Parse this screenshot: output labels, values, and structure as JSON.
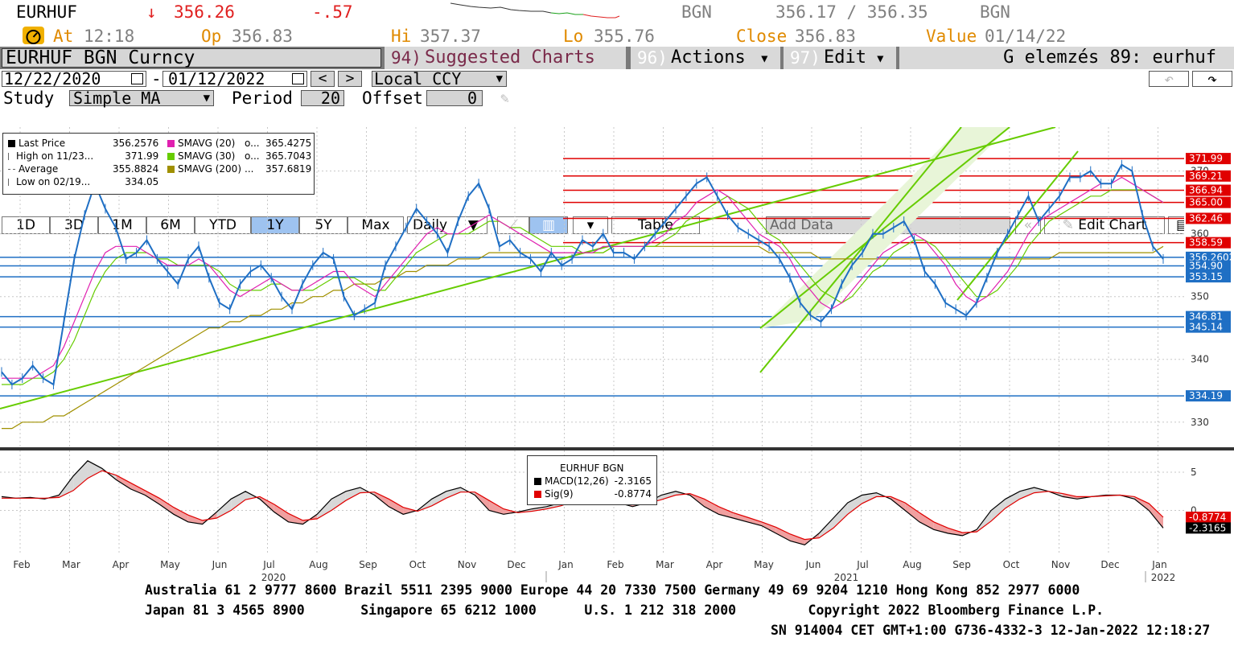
{
  "ticker_row": {
    "ticker": "EURHUF",
    "arrow": "↓",
    "price": "356.26",
    "change": "-.57",
    "source_left": "BGN",
    "bid_ask": "356.17 / 356.35",
    "source_right": "BGN"
  },
  "quote_row": {
    "at_label": "At",
    "at_value": "12:18",
    "op_label": "Op",
    "op_value": "356.83",
    "hi_label": "Hi",
    "hi_value": "357.37",
    "lo_label": "Lo",
    "lo_value": "355.76",
    "close_label": "Close",
    "close_value": "356.83",
    "value_label": "Value",
    "value_value": "01/14/22"
  },
  "title_row": {
    "security": "EURHUF BGN Curncy",
    "suggested_num": "94)",
    "suggested_label": "Suggested Charts",
    "actions_num": "96)",
    "actions_label": "Actions",
    "edit_num": "97)",
    "edit_label": "Edit",
    "analysis": "G elemzés 89: eurhuf"
  },
  "date_row": {
    "start": "12/22/2020",
    "dash": "-",
    "end": "01/12/2022",
    "prev": "<",
    "next": ">",
    "currency": "Local CCY"
  },
  "study_row": {
    "study_label": "Study",
    "study_value": "Simple MA",
    "period_label": "Period",
    "period_value": "20",
    "offset_label": "Offset",
    "offset_value": "0"
  },
  "toolbar": {
    "ranges": [
      "1D",
      "3D",
      "1M",
      "6M",
      "YTD",
      "1Y",
      "5Y",
      "Max"
    ],
    "selected_range": "1Y",
    "frequency": "Daily",
    "table": "Table",
    "add_data": "Add Data",
    "edit_chart": "Edit Chart"
  },
  "price_legend": {
    "rows": [
      {
        "label": "Last Price",
        "value": "356.2576"
      },
      {
        "label": "High on 11/23...",
        "value": "371.99"
      },
      {
        "label": "Average",
        "value": "355.8824"
      },
      {
        "label": "Low on 02/19...",
        "value": "334.05"
      }
    ],
    "ma": [
      {
        "label": "SMAVG (20)",
        "mark": "o...",
        "value": "365.4275",
        "color": "#e020b0"
      },
      {
        "label": "SMAVG (30)",
        "mark": "o...",
        "value": "365.7043",
        "color": "#66cc00"
      },
      {
        "label": "SMAVG (200)",
        "mark": "...",
        "value": "357.6819",
        "color": "#a09000"
      }
    ]
  },
  "macd_legend": {
    "title": "EURHUF BGN",
    "macd_label": "MACD(12,26)",
    "macd_value": "-2.3165",
    "sig_label": "Sig(9)",
    "sig_value": "-0.8774"
  },
  "chart_data": [
    {
      "type": "line",
      "title": "EURHUF BGN Curncy",
      "x_labels": [
        "Feb",
        "Mar",
        "Apr",
        "May",
        "Jun",
        "Jul",
        "Aug",
        "Sep",
        "Oct",
        "Nov",
        "Dec",
        "Jan",
        "Feb",
        "Mar",
        "Apr",
        "May",
        "Jun",
        "Jul",
        "Aug",
        "Sep",
        "Oct",
        "Nov",
        "Dec",
        "Jan"
      ],
      "year_labels": [
        "2020",
        "2021",
        "2022"
      ],
      "y_ticks": [
        330,
        340,
        350,
        360,
        370
      ],
      "ylim": [
        326,
        377
      ],
      "series": [
        {
          "name": "Last Price",
          "color": "#1f6fc4",
          "values": [
            338,
            336,
            337,
            339,
            337,
            336,
            346,
            356,
            363,
            368,
            364,
            361,
            356,
            357,
            359,
            356,
            354,
            352,
            356,
            358,
            353,
            349,
            348,
            352,
            354,
            355,
            353,
            350,
            348,
            352,
            355,
            357,
            356,
            350,
            347,
            348,
            349,
            355,
            358,
            361,
            364,
            362,
            360,
            357,
            362,
            366,
            368,
            364,
            358,
            359,
            357,
            356,
            354,
            357,
            355,
            356,
            359,
            358,
            360,
            357,
            357,
            356,
            358,
            360,
            362,
            364,
            366,
            368,
            369,
            366,
            363,
            361,
            360,
            359,
            358,
            356,
            353,
            349,
            347,
            346,
            348,
            352,
            355,
            357,
            360,
            360,
            361,
            362,
            359,
            354,
            352,
            349,
            348,
            347,
            349,
            353,
            357,
            360,
            363,
            366,
            362,
            364,
            366,
            369,
            369,
            370,
            368,
            368,
            371,
            370,
            363,
            358,
            356
          ]
        },
        {
          "name": "SMAVG (20)",
          "color": "#e020b0",
          "values": [
            337,
            337,
            337,
            337,
            338,
            339,
            342,
            346,
            350,
            354,
            357,
            358,
            358,
            358,
            357,
            356,
            355,
            355,
            355,
            356,
            355,
            353,
            351,
            350,
            351,
            352,
            353,
            352,
            351,
            351,
            352,
            353,
            354,
            354,
            352,
            351,
            350,
            352,
            354,
            356,
            358,
            360,
            361,
            360,
            360,
            361,
            362,
            363,
            362,
            361,
            360,
            359,
            358,
            357,
            357,
            357,
            357,
            357,
            358,
            358,
            358,
            358,
            358,
            359,
            360,
            362,
            363,
            365,
            366,
            367,
            366,
            364,
            362,
            360,
            359,
            358,
            356,
            353,
            351,
            349,
            348,
            349,
            351,
            353,
            355,
            357,
            358,
            359,
            360,
            359,
            357,
            355,
            352,
            350,
            349,
            350,
            352,
            354,
            357,
            360,
            362,
            363,
            364,
            365,
            366,
            367,
            368,
            368,
            369,
            368,
            367,
            366,
            365
          ]
        },
        {
          "name": "SMAVG (30)",
          "color": "#66cc00",
          "values": [
            336,
            336,
            336,
            337,
            337,
            338,
            340,
            343,
            347,
            351,
            354,
            356,
            357,
            357,
            357,
            356,
            356,
            355,
            355,
            355,
            355,
            354,
            352,
            351,
            351,
            351,
            352,
            352,
            351,
            351,
            351,
            352,
            353,
            353,
            353,
            352,
            351,
            351,
            353,
            355,
            357,
            358,
            359,
            360,
            360,
            360,
            361,
            362,
            362,
            361,
            361,
            360,
            359,
            358,
            358,
            358,
            357,
            357,
            357,
            358,
            358,
            358,
            358,
            358,
            359,
            360,
            362,
            363,
            364,
            365,
            366,
            365,
            364,
            362,
            360,
            359,
            357,
            355,
            353,
            351,
            350,
            349,
            350,
            352,
            354,
            355,
            357,
            358,
            359,
            359,
            358,
            356,
            354,
            352,
            350,
            350,
            351,
            353,
            355,
            358,
            360,
            362,
            363,
            364,
            365,
            366,
            366,
            367,
            367,
            367,
            367,
            366,
            365
          ]
        },
        {
          "name": "SMAVG (200)",
          "color": "#a09000",
          "values": [
            329,
            329,
            330,
            330,
            330,
            331,
            331,
            332,
            333,
            334,
            335,
            336,
            337,
            338,
            339,
            340,
            341,
            342,
            343,
            344,
            345,
            345,
            346,
            346,
            347,
            347,
            348,
            348,
            349,
            349,
            350,
            350,
            351,
            351,
            352,
            352,
            352,
            353,
            353,
            354,
            354,
            355,
            355,
            355,
            356,
            356,
            356,
            357,
            357,
            357,
            357,
            357,
            357,
            357,
            357,
            357,
            357,
            357,
            357,
            358,
            358,
            358,
            358,
            358,
            358,
            358,
            358,
            358,
            358,
            358,
            358,
            358,
            358,
            358,
            357,
            357,
            357,
            357,
            357,
            356,
            356,
            356,
            356,
            356,
            356,
            356,
            356,
            356,
            356,
            356,
            356,
            356,
            356,
            356,
            356,
            356,
            356,
            356,
            356,
            356,
            356,
            356,
            357,
            357,
            357,
            357,
            357,
            357,
            357,
            357,
            357,
            357,
            358
          ]
        }
      ],
      "horizontal_levels": [
        {
          "value": 371.99,
          "label": "371.99",
          "color": "#e00000"
        },
        {
          "value": 369.21,
          "label": "369.21",
          "color": "#e00000"
        },
        {
          "value": 366.94,
          "label": "366.94",
          "color": "#e00000"
        },
        {
          "value": 365.0,
          "label": "365.00",
          "color": "#e00000"
        },
        {
          "value": 362.46,
          "label": "362.46",
          "color": "#e00000"
        },
        {
          "value": 358.59,
          "label": "358.59",
          "color": "#e00000"
        },
        {
          "value": 356.2602,
          "label": "356.2602",
          "color": "#1f6fc4"
        },
        {
          "value": 354.9,
          "label": "354.90",
          "color": "#1f6fc4"
        },
        {
          "value": 353.15,
          "label": "353.15",
          "color": "#1f6fc4"
        },
        {
          "value": 346.81,
          "label": "346.81",
          "color": "#1f6fc4"
        },
        {
          "value": 345.14,
          "label": "345.14",
          "color": "#1f6fc4"
        },
        {
          "value": 334.19,
          "label": "334.19",
          "color": "#1f6fc4"
        }
      ],
      "grid": true
    },
    {
      "type": "area",
      "title": "EURHUF BGN",
      "y_ticks": [
        5,
        0
      ],
      "ylim": [
        -5,
        7
      ],
      "series": [
        {
          "name": "MACD(12,26)",
          "color": "#000000",
          "values": [
            1.8,
            1.6,
            1.7,
            1.5,
            2.0,
            4.5,
            6.5,
            5.5,
            4.0,
            2.8,
            2.0,
            0.8,
            -0.5,
            -1.5,
            -1.8,
            -0.2,
            1.5,
            2.5,
            1.5,
            -0.2,
            -1.5,
            -1.8,
            -0.5,
            1.5,
            2.5,
            3.0,
            2.0,
            0.5,
            -0.5,
            0.0,
            1.5,
            2.5,
            3.0,
            2.0,
            0.0,
            -0.5,
            -0.2,
            0.2,
            0.5,
            1.0,
            2.0,
            2.5,
            2.0,
            1.0,
            0.5,
            1.0,
            2.0,
            2.5,
            2.0,
            0.5,
            -0.5,
            -1.0,
            -1.5,
            -2.0,
            -3.0,
            -4.0,
            -4.5,
            -3.0,
            -1.0,
            1.0,
            2.0,
            2.3,
            1.5,
            0.0,
            -1.5,
            -2.5,
            -3.0,
            -3.3,
            -2.5,
            0.0,
            1.5,
            2.5,
            3.0,
            2.5,
            1.8,
            1.5,
            1.8,
            2.0,
            2.0,
            1.5,
            0.0,
            -2.3
          ]
        },
        {
          "name": "Sig(9)",
          "color": "#e00000",
          "values": [
            1.6,
            1.6,
            1.6,
            1.6,
            1.7,
            2.6,
            4.2,
            5.2,
            4.6,
            3.6,
            2.6,
            1.6,
            0.4,
            -0.6,
            -1.3,
            -1.0,
            0.0,
            1.4,
            1.8,
            0.8,
            -0.4,
            -1.3,
            -1.1,
            0.0,
            1.3,
            2.3,
            2.4,
            1.5,
            0.4,
            -0.1,
            0.6,
            1.6,
            2.4,
            2.4,
            1.3,
            0.2,
            -0.3,
            -0.1,
            0.2,
            0.6,
            1.3,
            2.0,
            2.1,
            1.6,
            1.0,
            0.9,
            1.4,
            2.0,
            2.2,
            1.5,
            0.5,
            -0.3,
            -0.9,
            -1.5,
            -2.2,
            -3.1,
            -3.8,
            -3.6,
            -2.3,
            -0.5,
            0.9,
            1.8,
            1.8,
            1.0,
            -0.3,
            -1.5,
            -2.3,
            -2.9,
            -2.8,
            -1.4,
            0.3,
            1.5,
            2.3,
            2.5,
            2.2,
            1.8,
            1.8,
            1.9,
            2.0,
            1.8,
            0.9,
            -0.9
          ]
        }
      ],
      "value_labels": [
        "-0.8774",
        "-2.3165"
      ]
    }
  ],
  "footer": {
    "line1": "Australia 61 2 9777 8600 Brazil 5511 2395 9000 Europe 44 20 7330 7500 Germany 49 69 9204 1210 Hong Kong 852 2977 6000",
    "line2": "Japan 81 3 4565 8900       Singapore 65 6212 1000      U.S. 1 212 318 2000         Copyright 2022 Bloomberg Finance L.P.",
    "line3": "SN 914004 CET  GMT+1:00 G736-4332-3 12-Jan-2022 12:18:27"
  }
}
